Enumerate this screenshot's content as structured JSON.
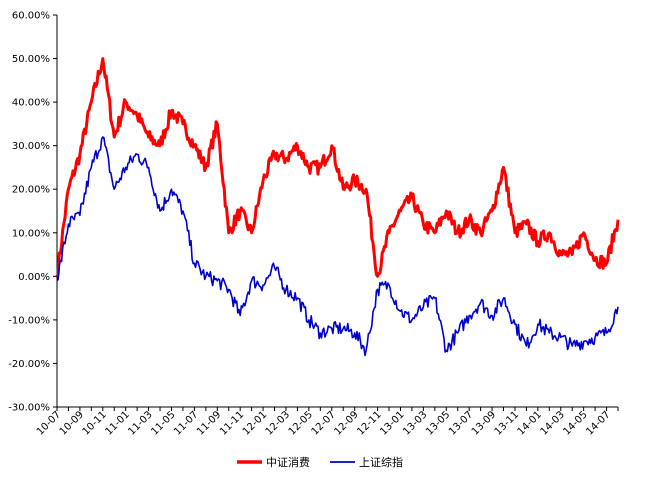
{
  "chart_data": {
    "type": "line",
    "title": "",
    "xlabel": "",
    "ylabel": "",
    "ylim": [
      -30,
      60
    ],
    "ytick_labels": [
      "60.00%",
      "50.00%",
      "40.00%",
      "30.00%",
      "20.00%",
      "10.00%",
      "0.00%",
      "-10.00%",
      "-20.00%",
      "-30.00%"
    ],
    "ytick_values": [
      60,
      50,
      40,
      30,
      20,
      10,
      0,
      -10,
      -20,
      -30
    ],
    "x_tick_labels": [
      "10-07",
      "10-09",
      "10-11",
      "11-01",
      "11-03",
      "11-05",
      "11-07",
      "11-09",
      "11-11",
      "12-01",
      "12-03",
      "12-05",
      "12-07",
      "12-09",
      "12-11",
      "13-01",
      "13-03",
      "13-05",
      "13-07",
      "13-09",
      "13-11",
      "14-01",
      "14-03",
      "14-05",
      "14-07"
    ],
    "x_months": [
      "2010-07",
      "2010-08",
      "2010-09",
      "2010-10",
      "2010-11",
      "2010-12",
      "2011-01",
      "2011-02",
      "2011-03",
      "2011-04",
      "2011-05",
      "2011-06",
      "2011-07",
      "2011-08",
      "2011-09",
      "2011-10",
      "2011-11",
      "2011-12",
      "2012-01",
      "2012-02",
      "2012-03",
      "2012-04",
      "2012-05",
      "2012-06",
      "2012-07",
      "2012-08",
      "2012-09",
      "2012-10",
      "2012-11",
      "2012-12",
      "2013-01",
      "2013-02",
      "2013-03",
      "2013-04",
      "2013-05",
      "2013-06",
      "2013-07",
      "2013-08",
      "2013-09",
      "2013-10",
      "2013-11",
      "2013-12",
      "2014-01",
      "2014-02",
      "2014-03",
      "2014-04",
      "2014-05",
      "2014-06",
      "2014-07",
      "2014-08"
    ],
    "grid": false,
    "legend_position": "bottom",
    "series": [
      {
        "name": "中证消费",
        "color": "#ff0000",
        "values": [
          0,
          20,
          28,
          40,
          50,
          32,
          40,
          37,
          32,
          30,
          38,
          35,
          30,
          25,
          35,
          10,
          15,
          10,
          22,
          28,
          27,
          30,
          25,
          25,
          30,
          20,
          22,
          20,
          0,
          10,
          15,
          18,
          12,
          10,
          15,
          10,
          13,
          10,
          15,
          25,
          10,
          12,
          8,
          10,
          5,
          5,
          10,
          4,
          3,
          13
        ]
      },
      {
        "name": "上证综指",
        "color": "#0000cc",
        "values": [
          -1,
          12,
          14,
          25,
          32,
          20,
          25,
          28,
          25,
          15,
          20,
          15,
          3,
          0,
          -1,
          -3,
          -9,
          -1,
          -2,
          2,
          -3,
          -5,
          -10,
          -13,
          -12,
          -12,
          -13,
          -17,
          -3,
          -2,
          -8,
          -10,
          -7,
          -5,
          -17,
          -13,
          -9,
          -6,
          -9,
          -5,
          -11,
          -16,
          -11,
          -13,
          -14,
          -16,
          -15,
          -14,
          -13,
          -7
        ]
      }
    ]
  }
}
